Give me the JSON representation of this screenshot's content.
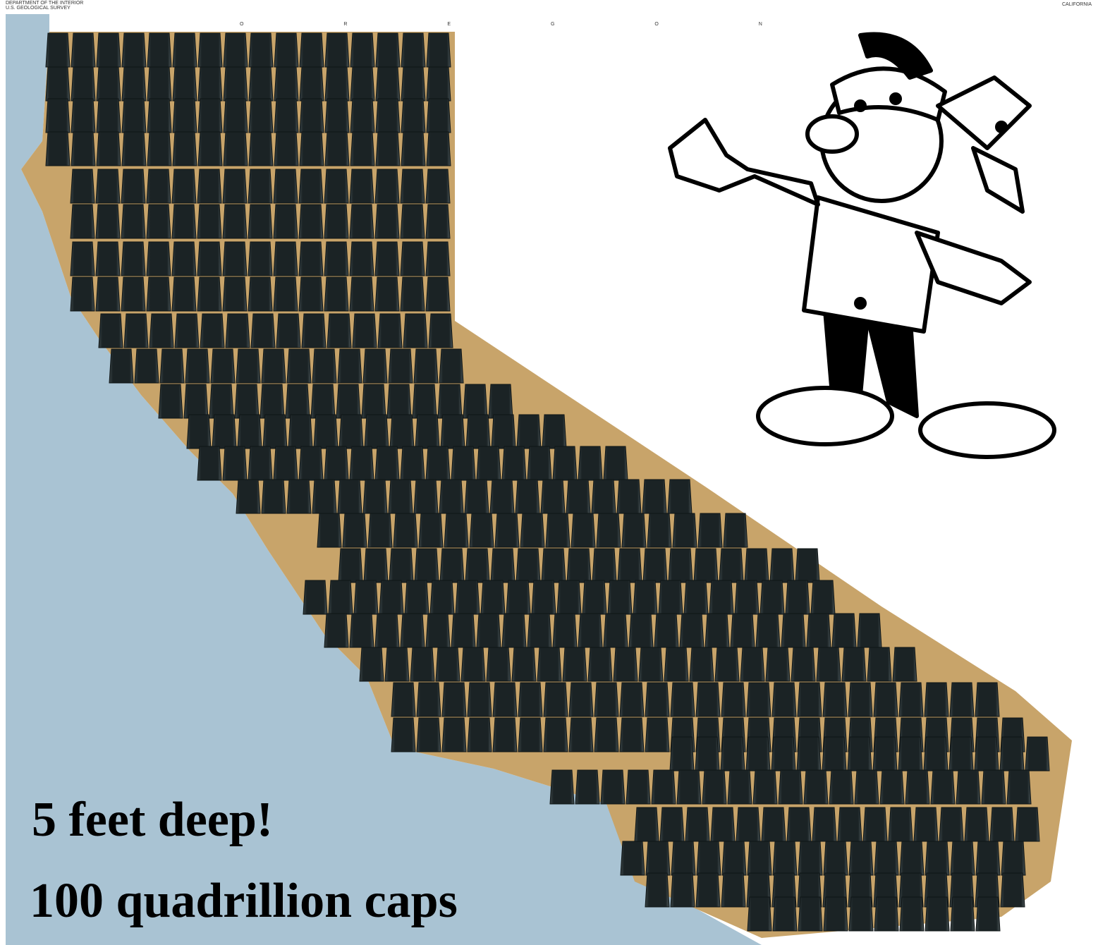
{
  "header": {
    "agency": "DEPARTMENT OF THE INTERIOR",
    "survey": "U.S. GEOLOGICAL SURVEY",
    "state": "CALIFORNIA",
    "neighbor": "O R E G O N"
  },
  "caption": {
    "line1": "5 feet deep!",
    "line2": "100 quadrillion caps"
  }
}
